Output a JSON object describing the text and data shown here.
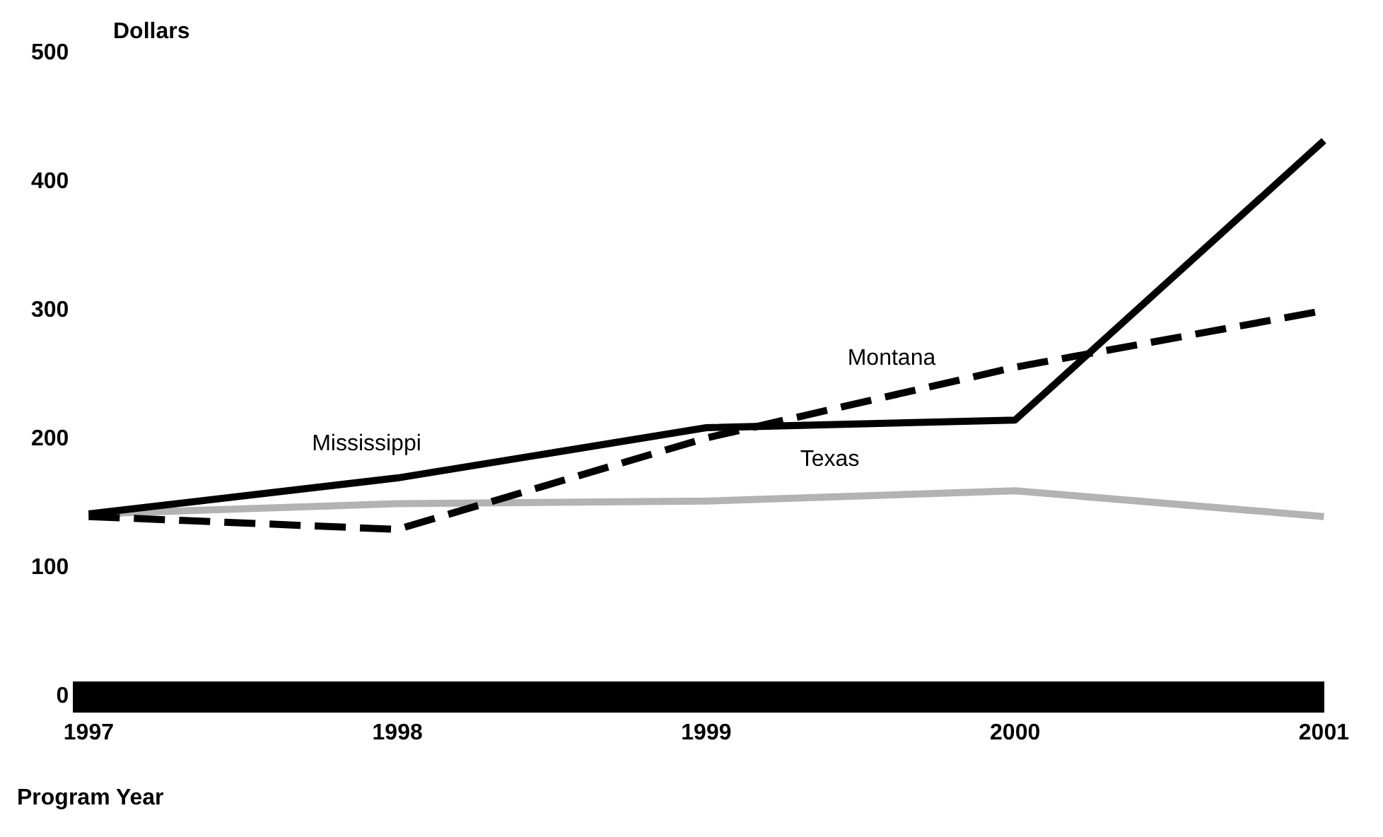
{
  "chart_data": {
    "type": "line",
    "xlabel": "Program Year",
    "ylabel": "Dollars",
    "categories": [
      "1997",
      "1998",
      "1999",
      "2000",
      "2001"
    ],
    "series": [
      {
        "name": "Mississippi",
        "color": "#000000",
        "values": [
          142,
          170,
          209,
          215,
          432
        ],
        "line_style": "solid"
      },
      {
        "name": "Montana",
        "color": "#000000",
        "values": [
          140,
          130,
          201,
          256,
          300
        ],
        "line_style": "dashed"
      },
      {
        "name": "Texas",
        "color": "#b3b3b3",
        "values": [
          142,
          150,
          152,
          160,
          140
        ],
        "line_style": "solid"
      }
    ],
    "ylim": [
      0,
      500
    ],
    "yticks": [
      0,
      100,
      200,
      300,
      400,
      500
    ],
    "grid": false,
    "legend": false,
    "marker": "none"
  }
}
